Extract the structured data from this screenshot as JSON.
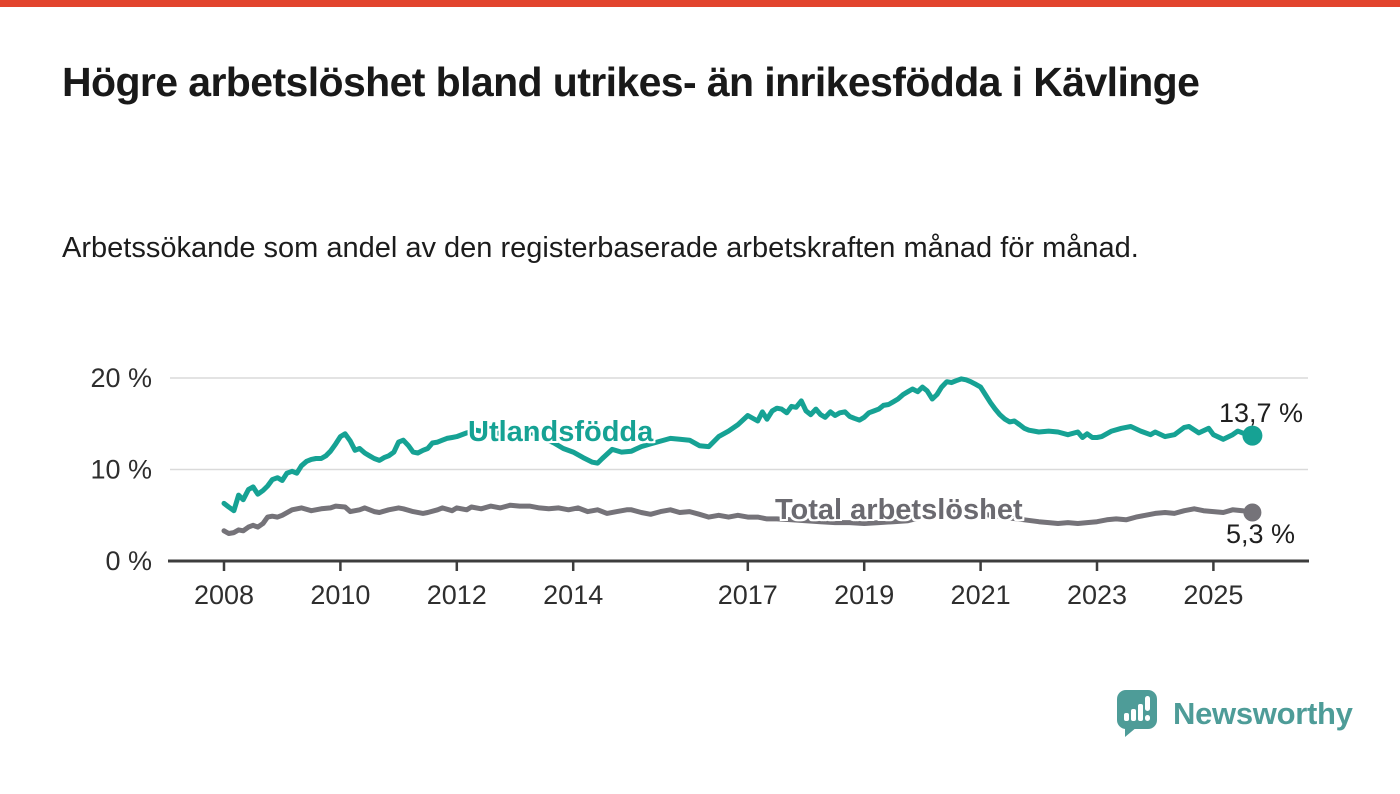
{
  "page": {
    "background_color": "#ffffff",
    "accent_bar_color": "#e2442e"
  },
  "header": {
    "title": "Högre arbetslöshet bland utrikes- än inrikesfödda i Kävlinge",
    "subtitle": "Arbetssökande som andel av den registerbaserade arbetskraften månad för månad."
  },
  "chart_data": {
    "type": "line",
    "title": "",
    "xlabel": "",
    "ylabel": "",
    "grid": "horizontal",
    "legend_position": "inline-labels",
    "x_axis": {
      "ticks": [
        2008,
        2010,
        2012,
        2014,
        2017,
        2019,
        2021,
        2023,
        2025
      ],
      "range": [
        2008,
        2026.3
      ]
    },
    "y_axis": {
      "unit": "%",
      "range": [
        0,
        21
      ],
      "ticks": [
        {
          "value": 0,
          "label": "0 %"
        },
        {
          "value": 10,
          "label": "10 %"
        },
        {
          "value": 20,
          "label": "20 %"
        }
      ]
    },
    "series": [
      {
        "name": "Utlandsfödda",
        "color": "#16a294",
        "label_color": "#16a294",
        "end_label": "13,7 %",
        "end_value": 13.7,
        "points": [
          [
            2008.0,
            6.3
          ],
          [
            2008.08,
            5.9
          ],
          [
            2008.17,
            5.5
          ],
          [
            2008.25,
            7.2
          ],
          [
            2008.33,
            6.7
          ],
          [
            2008.42,
            7.8
          ],
          [
            2008.5,
            8.1
          ],
          [
            2008.58,
            7.3
          ],
          [
            2008.67,
            7.7
          ],
          [
            2008.75,
            8.2
          ],
          [
            2008.83,
            8.9
          ],
          [
            2008.92,
            9.1
          ],
          [
            2009.0,
            8.8
          ],
          [
            2009.08,
            9.6
          ],
          [
            2009.17,
            9.8
          ],
          [
            2009.25,
            9.6
          ],
          [
            2009.33,
            10.4
          ],
          [
            2009.42,
            10.9
          ],
          [
            2009.5,
            11.1
          ],
          [
            2009.58,
            11.2
          ],
          [
            2009.67,
            11.2
          ],
          [
            2009.75,
            11.5
          ],
          [
            2009.83,
            12.0
          ],
          [
            2009.92,
            12.8
          ],
          [
            2010.0,
            13.6
          ],
          [
            2010.08,
            13.9
          ],
          [
            2010.17,
            13.1
          ],
          [
            2010.25,
            12.1
          ],
          [
            2010.33,
            12.3
          ],
          [
            2010.42,
            11.8
          ],
          [
            2010.5,
            11.5
          ],
          [
            2010.58,
            11.2
          ],
          [
            2010.67,
            11.0
          ],
          [
            2010.75,
            11.3
          ],
          [
            2010.83,
            11.5
          ],
          [
            2010.92,
            11.9
          ],
          [
            2011.0,
            13.0
          ],
          [
            2011.08,
            13.2
          ],
          [
            2011.17,
            12.6
          ],
          [
            2011.25,
            11.9
          ],
          [
            2011.33,
            11.8
          ],
          [
            2011.42,
            12.1
          ],
          [
            2011.5,
            12.3
          ],
          [
            2011.58,
            12.9
          ],
          [
            2011.67,
            13.0
          ],
          [
            2011.75,
            13.2
          ],
          [
            2011.83,
            13.4
          ],
          [
            2011.92,
            13.5
          ],
          [
            2012.0,
            13.6
          ],
          [
            2012.17,
            14.0
          ],
          [
            2012.33,
            14.3
          ],
          [
            2012.5,
            14.1
          ],
          [
            2012.67,
            13.9
          ],
          [
            2012.83,
            14.2
          ],
          [
            2013.0,
            14.4
          ],
          [
            2013.17,
            14.2
          ],
          [
            2013.33,
            13.9
          ],
          [
            2013.5,
            13.4
          ],
          [
            2013.67,
            12.9
          ],
          [
            2013.83,
            12.3
          ],
          [
            2014.0,
            11.9
          ],
          [
            2014.17,
            11.3
          ],
          [
            2014.33,
            10.8
          ],
          [
            2014.42,
            10.7
          ],
          [
            2014.5,
            11.2
          ],
          [
            2014.67,
            12.2
          ],
          [
            2014.83,
            11.9
          ],
          [
            2015.0,
            12.0
          ],
          [
            2015.17,
            12.5
          ],
          [
            2015.33,
            12.8
          ],
          [
            2015.5,
            13.1
          ],
          [
            2015.67,
            13.4
          ],
          [
            2015.83,
            13.3
          ],
          [
            2016.0,
            13.2
          ],
          [
            2016.17,
            12.6
          ],
          [
            2016.33,
            12.5
          ],
          [
            2016.5,
            13.6
          ],
          [
            2016.67,
            14.2
          ],
          [
            2016.83,
            14.9
          ],
          [
            2017.0,
            15.9
          ],
          [
            2017.17,
            15.3
          ],
          [
            2017.25,
            16.3
          ],
          [
            2017.33,
            15.5
          ],
          [
            2017.42,
            16.4
          ],
          [
            2017.5,
            16.7
          ],
          [
            2017.58,
            16.6
          ],
          [
            2017.67,
            16.2
          ],
          [
            2017.75,
            16.9
          ],
          [
            2017.83,
            16.8
          ],
          [
            2017.92,
            17.5
          ],
          [
            2018.0,
            16.4
          ],
          [
            2018.08,
            16.0
          ],
          [
            2018.17,
            16.6
          ],
          [
            2018.25,
            16.0
          ],
          [
            2018.33,
            15.7
          ],
          [
            2018.42,
            16.3
          ],
          [
            2018.5,
            15.9
          ],
          [
            2018.58,
            16.2
          ],
          [
            2018.67,
            16.3
          ],
          [
            2018.75,
            15.8
          ],
          [
            2018.83,
            15.6
          ],
          [
            2018.92,
            15.4
          ],
          [
            2019.0,
            15.7
          ],
          [
            2019.08,
            16.2
          ],
          [
            2019.17,
            16.4
          ],
          [
            2019.25,
            16.6
          ],
          [
            2019.33,
            17.0
          ],
          [
            2019.42,
            17.1
          ],
          [
            2019.5,
            17.4
          ],
          [
            2019.58,
            17.7
          ],
          [
            2019.67,
            18.2
          ],
          [
            2019.75,
            18.5
          ],
          [
            2019.83,
            18.8
          ],
          [
            2019.92,
            18.5
          ],
          [
            2020.0,
            19.0
          ],
          [
            2020.08,
            18.6
          ],
          [
            2020.17,
            17.7
          ],
          [
            2020.25,
            18.2
          ],
          [
            2020.33,
            19.0
          ],
          [
            2020.42,
            19.6
          ],
          [
            2020.5,
            19.5
          ],
          [
            2020.58,
            19.7
          ],
          [
            2020.67,
            19.9
          ],
          [
            2020.75,
            19.8
          ],
          [
            2020.83,
            19.6
          ],
          [
            2020.92,
            19.3
          ],
          [
            2021.0,
            19.0
          ],
          [
            2021.08,
            18.2
          ],
          [
            2021.17,
            17.3
          ],
          [
            2021.25,
            16.6
          ],
          [
            2021.33,
            16.0
          ],
          [
            2021.42,
            15.5
          ],
          [
            2021.5,
            15.2
          ],
          [
            2021.58,
            15.3
          ],
          [
            2021.67,
            14.9
          ],
          [
            2021.75,
            14.5
          ],
          [
            2021.83,
            14.3
          ],
          [
            2021.92,
            14.2
          ],
          [
            2022.0,
            14.1
          ],
          [
            2022.17,
            14.2
          ],
          [
            2022.33,
            14.1
          ],
          [
            2022.5,
            13.8
          ],
          [
            2022.67,
            14.1
          ],
          [
            2022.75,
            13.5
          ],
          [
            2022.83,
            13.9
          ],
          [
            2022.92,
            13.5
          ],
          [
            2023.0,
            13.5
          ],
          [
            2023.08,
            13.6
          ],
          [
            2023.25,
            14.2
          ],
          [
            2023.42,
            14.5
          ],
          [
            2023.58,
            14.7
          ],
          [
            2023.75,
            14.2
          ],
          [
            2023.92,
            13.8
          ],
          [
            2024.0,
            14.1
          ],
          [
            2024.17,
            13.6
          ],
          [
            2024.33,
            13.8
          ],
          [
            2024.5,
            14.6
          ],
          [
            2024.58,
            14.7
          ],
          [
            2024.75,
            14.0
          ],
          [
            2024.92,
            14.5
          ],
          [
            2025.0,
            13.8
          ],
          [
            2025.17,
            13.3
          ],
          [
            2025.33,
            13.8
          ],
          [
            2025.42,
            14.2
          ],
          [
            2025.5,
            14.0
          ],
          [
            2025.58,
            13.9
          ],
          [
            2025.67,
            13.7
          ]
        ]
      },
      {
        "name": "Total arbetslöshet",
        "color": "#757379",
        "label_color": "#6b6a70",
        "end_label": "5,3 %",
        "end_value": 5.3,
        "points": [
          [
            2008.0,
            3.3
          ],
          [
            2008.08,
            3.0
          ],
          [
            2008.17,
            3.1
          ],
          [
            2008.25,
            3.4
          ],
          [
            2008.33,
            3.3
          ],
          [
            2008.42,
            3.7
          ],
          [
            2008.5,
            3.9
          ],
          [
            2008.58,
            3.7
          ],
          [
            2008.67,
            4.1
          ],
          [
            2008.75,
            4.8
          ],
          [
            2008.83,
            4.9
          ],
          [
            2008.92,
            4.8
          ],
          [
            2009.0,
            5.0
          ],
          [
            2009.17,
            5.6
          ],
          [
            2009.33,
            5.8
          ],
          [
            2009.5,
            5.5
          ],
          [
            2009.67,
            5.7
          ],
          [
            2009.83,
            5.8
          ],
          [
            2009.92,
            6.0
          ],
          [
            2010.08,
            5.9
          ],
          [
            2010.17,
            5.4
          ],
          [
            2010.33,
            5.6
          ],
          [
            2010.42,
            5.8
          ],
          [
            2010.58,
            5.4
          ],
          [
            2010.67,
            5.3
          ],
          [
            2010.83,
            5.6
          ],
          [
            2011.0,
            5.8
          ],
          [
            2011.08,
            5.7
          ],
          [
            2011.25,
            5.4
          ],
          [
            2011.42,
            5.2
          ],
          [
            2011.5,
            5.3
          ],
          [
            2011.67,
            5.6
          ],
          [
            2011.75,
            5.8
          ],
          [
            2011.92,
            5.5
          ],
          [
            2012.0,
            5.8
          ],
          [
            2012.17,
            5.6
          ],
          [
            2012.25,
            5.9
          ],
          [
            2012.42,
            5.7
          ],
          [
            2012.58,
            6.0
          ],
          [
            2012.75,
            5.8
          ],
          [
            2012.92,
            6.1
          ],
          [
            2013.08,
            6.0
          ],
          [
            2013.25,
            6.0
          ],
          [
            2013.42,
            5.8
          ],
          [
            2013.58,
            5.7
          ],
          [
            2013.75,
            5.8
          ],
          [
            2013.92,
            5.6
          ],
          [
            2014.08,
            5.8
          ],
          [
            2014.25,
            5.4
          ],
          [
            2014.42,
            5.6
          ],
          [
            2014.58,
            5.2
          ],
          [
            2014.75,
            5.4
          ],
          [
            2014.92,
            5.6
          ],
          [
            2015.0,
            5.6
          ],
          [
            2015.17,
            5.3
          ],
          [
            2015.33,
            5.1
          ],
          [
            2015.5,
            5.4
          ],
          [
            2015.67,
            5.6
          ],
          [
            2015.83,
            5.3
          ],
          [
            2016.0,
            5.4
          ],
          [
            2016.17,
            5.1
          ],
          [
            2016.33,
            4.8
          ],
          [
            2016.5,
            5.0
          ],
          [
            2016.67,
            4.8
          ],
          [
            2016.83,
            5.0
          ],
          [
            2017.0,
            4.8
          ],
          [
            2017.17,
            4.8
          ],
          [
            2017.33,
            4.6
          ],
          [
            2017.5,
            4.6
          ],
          [
            2017.75,
            4.5
          ],
          [
            2018.0,
            4.4
          ],
          [
            2018.25,
            4.3
          ],
          [
            2018.5,
            4.2
          ],
          [
            2018.75,
            4.2
          ],
          [
            2019.0,
            4.1
          ],
          [
            2019.25,
            4.2
          ],
          [
            2019.5,
            4.3
          ],
          [
            2019.75,
            4.4
          ],
          [
            2020.0,
            4.8
          ],
          [
            2020.25,
            5.4
          ],
          [
            2020.5,
            5.6
          ],
          [
            2020.75,
            5.5
          ],
          [
            2021.0,
            5.2
          ],
          [
            2021.25,
            4.9
          ],
          [
            2021.5,
            4.7
          ],
          [
            2021.75,
            4.5
          ],
          [
            2022.0,
            4.3
          ],
          [
            2022.17,
            4.2
          ],
          [
            2022.33,
            4.1
          ],
          [
            2022.5,
            4.2
          ],
          [
            2022.67,
            4.1
          ],
          [
            2022.83,
            4.2
          ],
          [
            2023.0,
            4.3
          ],
          [
            2023.17,
            4.5
          ],
          [
            2023.33,
            4.6
          ],
          [
            2023.5,
            4.5
          ],
          [
            2023.67,
            4.8
          ],
          [
            2023.83,
            5.0
          ],
          [
            2024.0,
            5.2
          ],
          [
            2024.17,
            5.3
          ],
          [
            2024.33,
            5.2
          ],
          [
            2024.5,
            5.5
          ],
          [
            2024.67,
            5.7
          ],
          [
            2024.83,
            5.5
          ],
          [
            2025.0,
            5.4
          ],
          [
            2025.17,
            5.3
          ],
          [
            2025.33,
            5.6
          ],
          [
            2025.5,
            5.5
          ],
          [
            2025.58,
            5.4
          ],
          [
            2025.67,
            5.3
          ]
        ]
      }
    ]
  },
  "branding": {
    "logo_text": "Newsworthy",
    "logo_color": "#4e9c98"
  }
}
